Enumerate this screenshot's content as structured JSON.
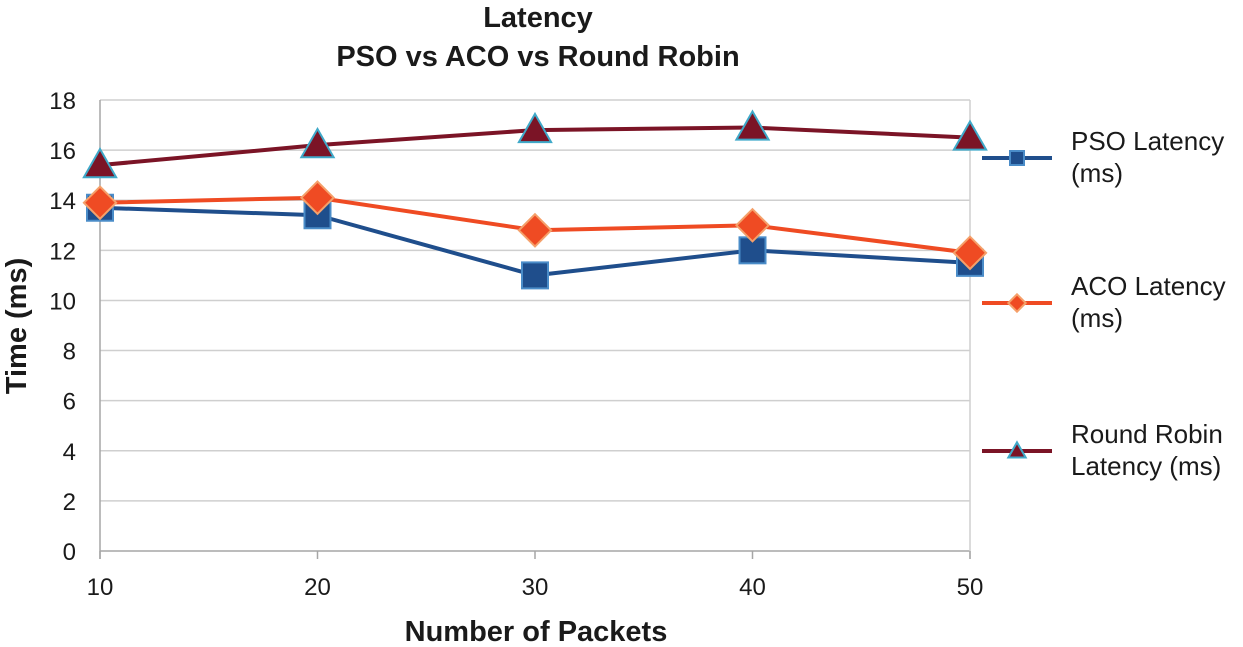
{
  "chart_data": {
    "type": "line",
    "title": "Latency",
    "subtitle": "PSO vs ACO vs Round Robin",
    "xlabel": "Number of Packets",
    "ylabel": "Time (ms)",
    "categories": [
      "10",
      "20",
      "30",
      "40",
      "50"
    ],
    "x": [
      10,
      20,
      30,
      40,
      50
    ],
    "ylim": [
      0,
      18
    ],
    "yticks": [
      0,
      2,
      4,
      6,
      8,
      10,
      12,
      14,
      16,
      18
    ],
    "grid": true,
    "legend_position": "right",
    "series": [
      {
        "name": "PSO Latency (ms)",
        "legend_lines": [
          "PSO Latency",
          "(ms)"
        ],
        "marker": "square",
        "color": "#1f4e8c",
        "marker_fill": "#1f4e8c",
        "marker_edge": "#4a8cc8",
        "values": [
          13.7,
          13.4,
          11.0,
          12.0,
          11.5
        ]
      },
      {
        "name": "ACO Latency (ms)",
        "legend_lines": [
          "ACO Latency",
          "(ms)"
        ],
        "marker": "diamond",
        "color": "#ef4b23",
        "marker_fill": "#ef4b23",
        "marker_edge": "#f5a06a",
        "values": [
          13.9,
          14.1,
          12.8,
          13.0,
          11.9
        ]
      },
      {
        "name": "Round Robin Latency (ms)",
        "legend_lines": [
          "Round Robin",
          "Latency (ms)"
        ],
        "marker": "triangle",
        "color": "#7b1426",
        "marker_fill": "#7b1426",
        "marker_edge": "#3fa9c9",
        "values": [
          15.4,
          16.2,
          16.8,
          16.9,
          16.5
        ]
      }
    ]
  }
}
